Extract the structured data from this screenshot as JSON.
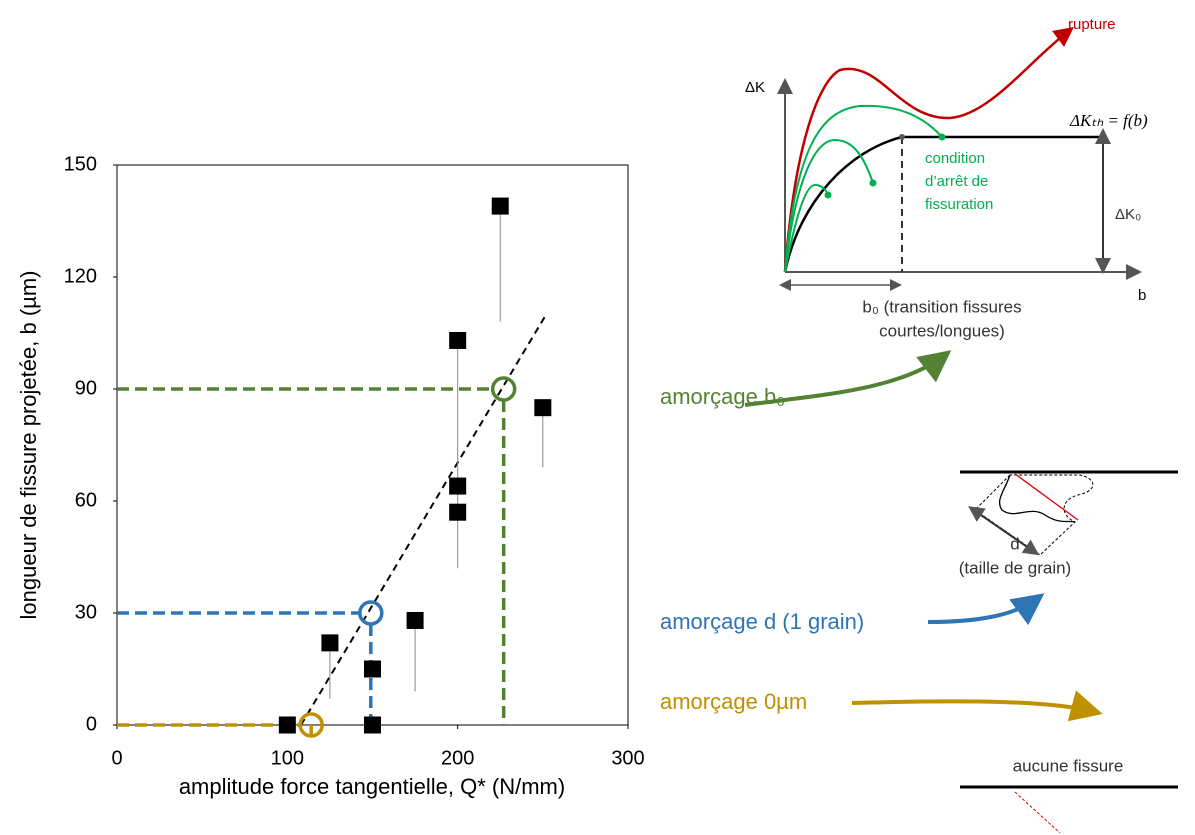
{
  "chart_data": {
    "type": "scatter",
    "xlabel": "amplitude force tangentielle, Q* (N/mm)",
    "ylabel": "longueur de fissure projetée, b (µm)",
    "xlim": [
      0,
      300
    ],
    "xticks": [
      0,
      100,
      200,
      300
    ],
    "ylim": [
      0,
      150
    ],
    "yticks": [
      0,
      30,
      60,
      90,
      120,
      150
    ],
    "grid": false,
    "series": [
      {
        "color": "#000000",
        "x": [
          100,
          125,
          150,
          150,
          175,
          200,
          200,
          200,
          225,
          250
        ],
        "values": [
          0,
          22,
          15,
          0,
          28,
          103,
          64,
          57,
          139,
          85
        ],
        "errors": [
          null,
          15,
          null,
          null,
          19,
          61,
          null,
          null,
          31,
          16
        ]
      }
    ],
    "trendline": {
      "x": [
        108,
        252
      ],
      "y": [
        0,
        110
      ],
      "color": "#000000"
    },
    "thresholds": [
      {
        "name": "amorçage 0µm",
        "color": "#bf9000",
        "x": 114,
        "y": 0
      },
      {
        "name": "amorçage d (1 grain)",
        "color": "#2e75b6",
        "x": 149,
        "y": 30
      },
      {
        "name": "amorçage b₀",
        "color": "#548235",
        "x": 227,
        "y": 90
      }
    ],
    "annotations": {
      "rupture": "rupture",
      "dk": "ΔK",
      "dkth": "ΔKₜₕ = f(b)",
      "condition": [
        "condition",
        "d’arrêt de",
        "fissuration"
      ],
      "dk0": "ΔK₀",
      "b": "b",
      "b0": [
        "b₀ (transition fissures",
        "courtes/longues)"
      ],
      "d": "d",
      "grain": "(taille de grain)",
      "none": "aucune fissure"
    }
  }
}
